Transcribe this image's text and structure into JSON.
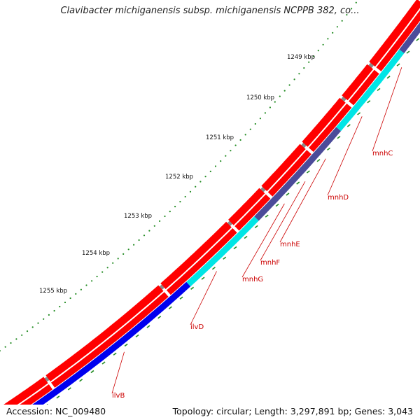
{
  "title": "Clavibacter michiganensis subsp. michiganensis NCPPB 382, co...",
  "footer": {
    "accession": "Accession: NC_009480",
    "summary": "Topology: circular; Length: 3,297,891 bp; Genes: 3,043"
  },
  "scale_ticks": [
    "1249 kbp",
    "1250 kbp",
    "1251 kbp",
    "1252 kbp",
    "1253 kbp",
    "1254 kbp",
    "1255 kbp"
  ],
  "gene_labels": [
    "mnhC",
    "mnhD",
    "mnhE",
    "mnhF",
    "mnhG",
    "ilvD",
    "ilvB"
  ],
  "colors": {
    "backbone": "#888888",
    "cds_forward": "#ff0000",
    "cds_reverse": "#ff0000",
    "cyan_track": "#00e5e5",
    "purple_track": "#4b4b99",
    "blue_track": "#0000ee",
    "tick": "#228b22",
    "label": "#cc0000"
  }
}
